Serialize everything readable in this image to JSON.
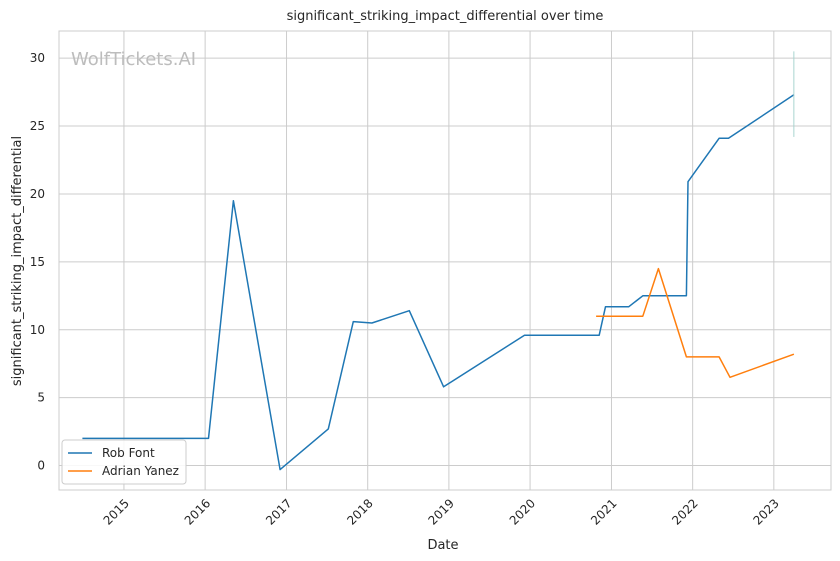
{
  "chart_data": {
    "type": "line",
    "title": "significant_striking_impact_differential over time",
    "xlabel": "Date",
    "ylabel": "significant_striking_impact_differential",
    "watermark": "WolfTickets.AI",
    "x_ticks": [
      "2015",
      "2016",
      "2017",
      "2018",
      "2019",
      "2020",
      "2021",
      "2022",
      "2023"
    ],
    "y_ticks": [
      0,
      5,
      10,
      15,
      20,
      25,
      30
    ],
    "xlim": [
      "2014-03-15",
      "2023-09-15"
    ],
    "ylim": [
      -1.8,
      32.0
    ],
    "grid": true,
    "legend_position": "lower-left",
    "series": [
      {
        "name": "Rob Font",
        "color": "#1f77b4",
        "points": [
          {
            "x": "2014-06-28",
            "y": 2.0
          },
          {
            "x": "2016-01-16",
            "y": 2.0
          },
          {
            "x": "2016-05-07",
            "y": 19.5
          },
          {
            "x": "2016-12-03",
            "y": -0.3
          },
          {
            "x": "2017-07-08",
            "y": 2.7
          },
          {
            "x": "2017-10-28",
            "y": 10.6
          },
          {
            "x": "2018-01-20",
            "y": 10.5
          },
          {
            "x": "2018-07-07",
            "y": 11.4
          },
          {
            "x": "2018-12-08",
            "y": 5.8
          },
          {
            "x": "2019-12-07",
            "y": 9.6
          },
          {
            "x": "2020-11-07",
            "y": 9.6
          },
          {
            "x": "2020-12-05",
            "y": 11.7
          },
          {
            "x": "2021-03-20",
            "y": 11.7
          },
          {
            "x": "2021-05-22",
            "y": 12.5
          },
          {
            "x": "2021-12-04",
            "y": 12.5
          },
          {
            "x": "2021-12-11",
            "y": 20.9
          },
          {
            "x": "2022-04-30",
            "y": 24.1
          },
          {
            "x": "2022-06-11",
            "y": 24.1
          },
          {
            "x": "2023-04-01",
            "y": 27.3
          }
        ]
      },
      {
        "name": "Adrian Yanez",
        "color": "#ff7f0e",
        "points": [
          {
            "x": "2020-10-24",
            "y": 11.0
          },
          {
            "x": "2021-05-22",
            "y": 11.0
          },
          {
            "x": "2021-07-31",
            "y": 14.5
          },
          {
            "x": "2021-12-04",
            "y": 8.0
          },
          {
            "x": "2022-04-30",
            "y": 8.0
          },
          {
            "x": "2022-06-18",
            "y": 6.5
          },
          {
            "x": "2023-04-01",
            "y": 8.2
          }
        ]
      }
    ],
    "error_bar": {
      "x": "2023-04-01",
      "y_low": 24.2,
      "y_high": 30.5,
      "color": "#a9d4d0"
    }
  }
}
